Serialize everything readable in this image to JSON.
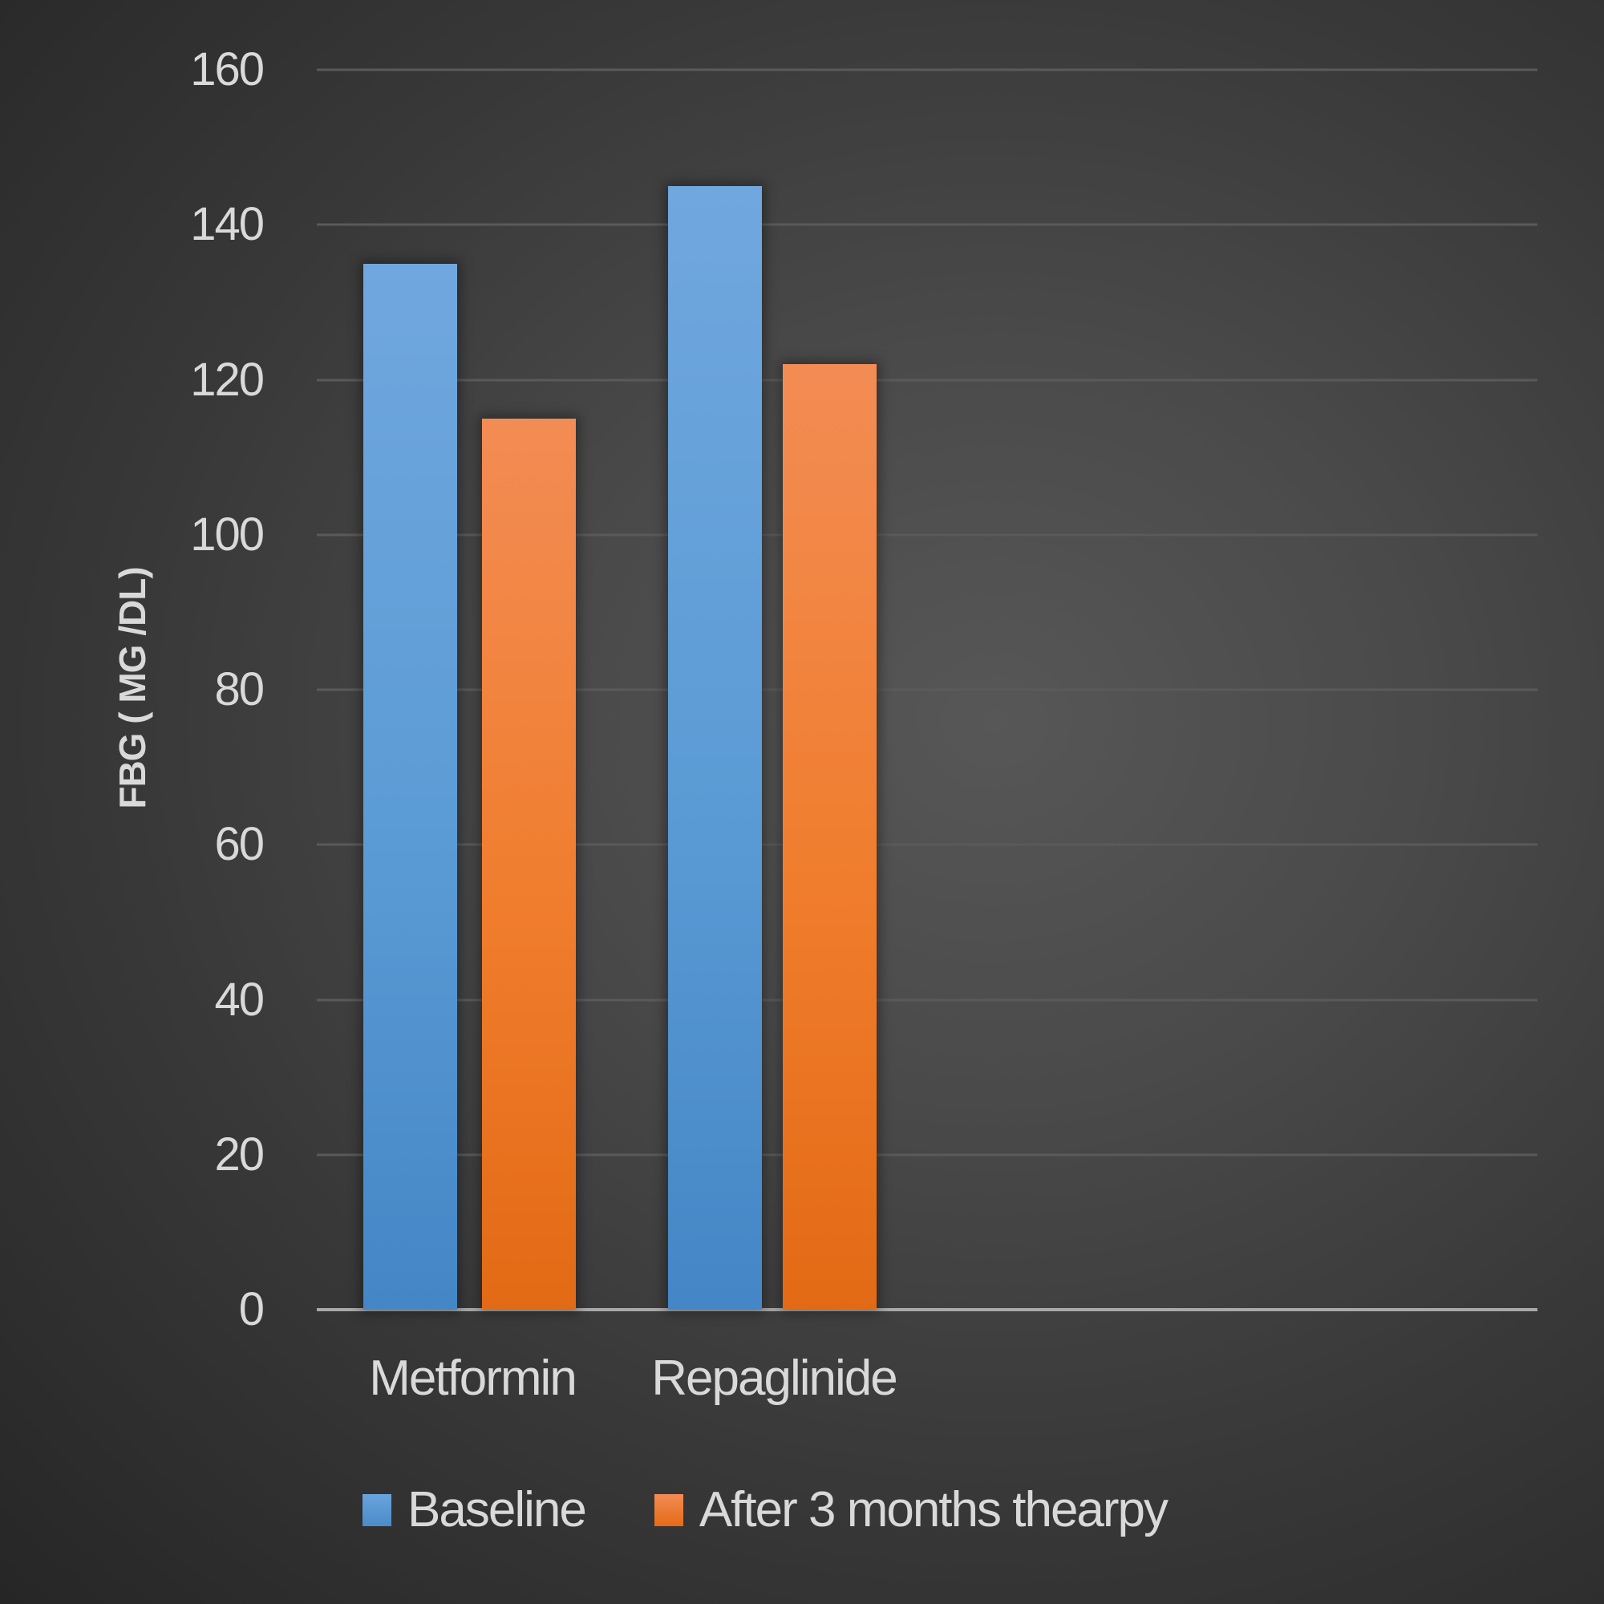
{
  "chart_data": {
    "type": "bar",
    "title": "",
    "xlabel": "",
    "ylabel": "FBG ( MG /DL)",
    "categories": [
      "Metformin",
      "Repaglinide"
    ],
    "series": [
      {
        "name": "Baseline",
        "values": [
          135,
          145
        ],
        "color": "#5b9bd5"
      },
      {
        "name": "After 3 months thearpy",
        "values": [
          115,
          122
        ],
        "color": "#ed7d31"
      }
    ],
    "ylim": [
      0,
      160
    ],
    "yticks": [
      0,
      20,
      40,
      60,
      80,
      100,
      120,
      140,
      160
    ],
    "grid": true,
    "legend_position": "bottom"
  },
  "axis": {
    "y_title": "FBG ( MG /DL)",
    "y_ticks": [
      "0",
      "20",
      "40",
      "60",
      "80",
      "100",
      "120",
      "140",
      "160"
    ],
    "x_labels": [
      "Metformin",
      "Repaglinide"
    ]
  },
  "legend": {
    "items": [
      {
        "label": "Baseline",
        "color": "#5b9bd5"
      },
      {
        "label": "After 3 months thearpy",
        "color": "#ed7d31"
      }
    ]
  },
  "colors": {
    "background_center": "#575757",
    "background_edge": "#262626",
    "gridline": "#5a5a5a",
    "axis_line": "#a9a9a9",
    "text": "#d9d9d9"
  }
}
